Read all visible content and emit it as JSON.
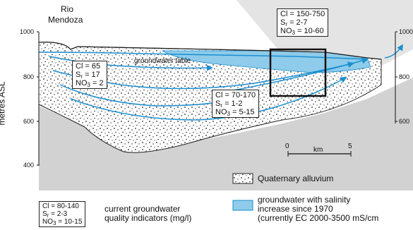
{
  "river": {
    "line1": "Rio",
    "line2": "Mendoza"
  },
  "axis": {
    "ylabel": "metres ASL",
    "left_ticks": [
      "1000",
      "800",
      "600",
      "400"
    ],
    "right_ticks": [
      "1000",
      "800",
      "600"
    ]
  },
  "groundwater_table_label": "groundwater table",
  "boxes": {
    "upper_right": {
      "cl": "Cl = 150-750",
      "sr_pre": "S",
      "sr_sub": "r",
      "sr_post": " = 2-7",
      "no3_pre": "NO",
      "no3_sub": "3",
      "no3_post": " = 10-60"
    },
    "left": {
      "cl": "Cl = 65",
      "sr_pre": "S",
      "sr_sub": "r",
      "sr_post": " = 17",
      "no3_pre": "NO",
      "no3_sub": "3",
      "no3_post": " = 2"
    },
    "middle": {
      "cl": "Cl = 70-170",
      "sr_pre": "S",
      "sr_sub": "r",
      "sr_post": " = 1-2",
      "no3_pre": "NO",
      "no3_sub": "3",
      "no3_post": " = 5-15"
    },
    "legend": {
      "cl": "Cl = 80-140",
      "sr_pre": "S",
      "sr_sub": "r",
      "sr_post": " = 2-3",
      "no3_pre": "NO",
      "no3_sub": "3",
      "no3_post": " = 10-15"
    }
  },
  "scale": {
    "zero": "0",
    "unit": "km",
    "max": "5"
  },
  "legend": {
    "alluvium": "Quaternary alluvium",
    "salinity_line1": "groundwater with salinity",
    "salinity_line2": "increase since 1970",
    "salinity_line3": "(currently EC 2000-3500 mS/cm",
    "indicators_line1": "current groundwater",
    "indicators_line2": "quality indicators (mg/l)"
  },
  "colors": {
    "water": "#1a8fd0",
    "salinity_fill": "#8fcbea",
    "rock": "#d2d2d2",
    "highlight": "#e4e4e4"
  }
}
